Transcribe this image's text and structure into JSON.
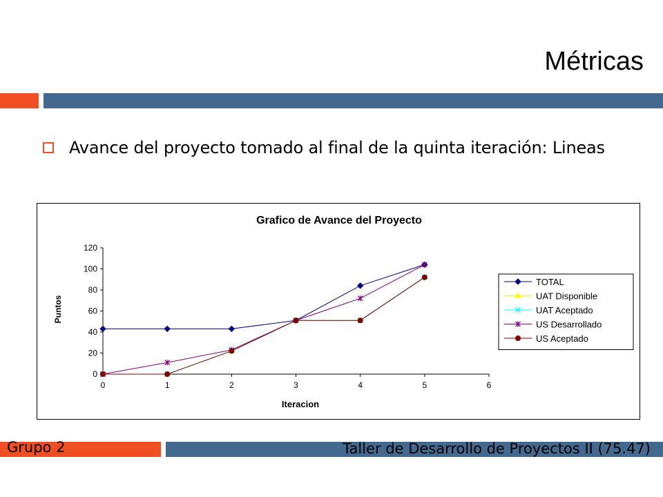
{
  "slide": {
    "title": "Métricas",
    "bullet": "Avance del proyecto tomado al final de la quinta iteración: Lineas",
    "footer_group": "Grupo 2",
    "footer_course": "Taller de Desarrollo de Proyectos II (75.47)"
  },
  "colors": {
    "accent": "#f04e23",
    "bar": "#44698e"
  },
  "chart_data": {
    "type": "line",
    "title": "Grafico de Avance del Proyecto",
    "xlabel": "Iteracion",
    "ylabel": "Puntos",
    "xlim": [
      0,
      6
    ],
    "ylim": [
      0,
      120
    ],
    "xticks": [
      "0",
      "1",
      "2",
      "3",
      "4",
      "5",
      "6"
    ],
    "yticks": [
      "0",
      "20",
      "40",
      "60",
      "80",
      "100",
      "120"
    ],
    "x": [
      0,
      1,
      2,
      3,
      4,
      5
    ],
    "legend_position": "right",
    "grid": false,
    "series": [
      {
        "name": "TOTAL",
        "values": [
          43,
          43,
          43,
          51,
          84,
          104
        ],
        "color": "#000080",
        "marker": "diamond"
      },
      {
        "name": "UAT Disponible",
        "values": [
          0,
          0,
          22,
          51,
          51,
          92
        ],
        "color": "#ffff00",
        "marker": "triangle"
      },
      {
        "name": "UAT Aceptado",
        "values": [
          0,
          0,
          22,
          51,
          51,
          92
        ],
        "color": "#00ffff",
        "marker": "x"
      },
      {
        "name": "US Desarrollado",
        "values": [
          0,
          11,
          23,
          51,
          72,
          104
        ],
        "color": "#800080",
        "marker": "star"
      },
      {
        "name": "US Aceptado",
        "values": [
          0,
          0,
          22,
          51,
          51,
          92
        ],
        "color": "#800000",
        "marker": "circle"
      }
    ]
  }
}
